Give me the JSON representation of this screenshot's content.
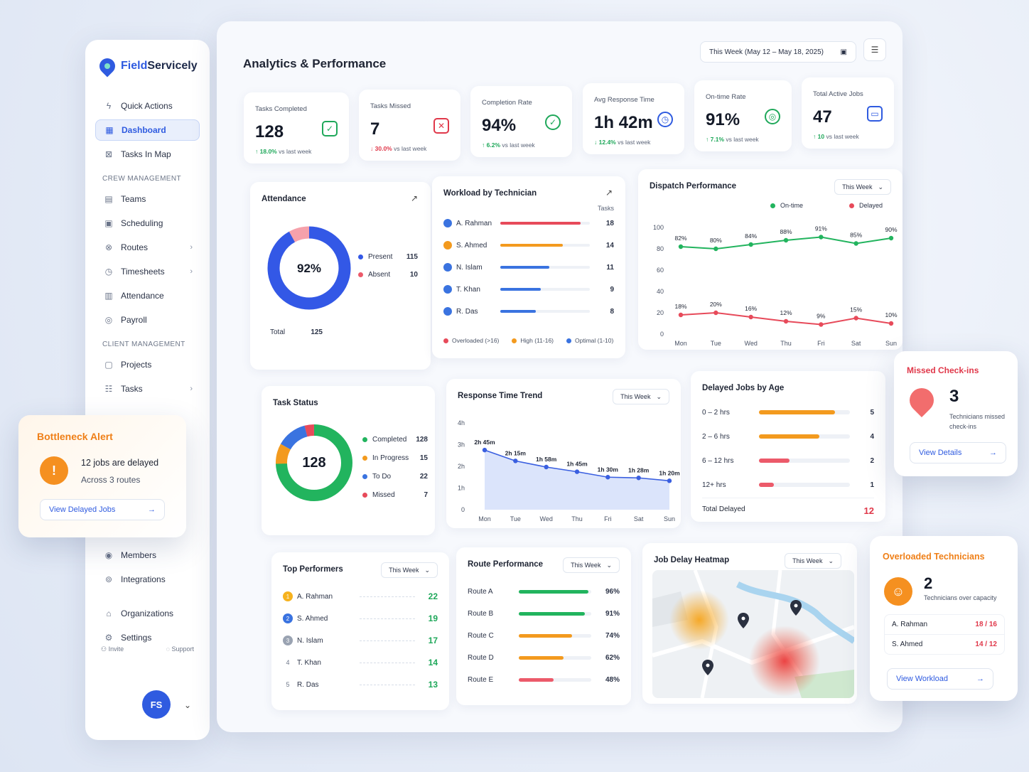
{
  "app": {
    "brand_a": "Field",
    "brand_b": "Servicely"
  },
  "sidebar": {
    "top": [
      {
        "label": "Quick Actions",
        "icon": "bolt-icon"
      },
      {
        "label": "Dashboard",
        "icon": "grid-icon"
      },
      {
        "label": "Tasks In Map",
        "icon": "map-icon"
      }
    ],
    "crew_title": "CREW MANAGEMENT",
    "crew": [
      {
        "label": "Teams"
      },
      {
        "label": "Scheduling"
      },
      {
        "label": "Routes"
      },
      {
        "label": "Timesheets"
      },
      {
        "label": "Attendance"
      },
      {
        "label": "Payroll"
      }
    ],
    "client_title": "CLIENT MANAGEMENT",
    "client": [
      {
        "label": "Projects"
      },
      {
        "label": "Tasks"
      }
    ],
    "bottom": [
      {
        "label": "Members"
      },
      {
        "label": "Integrations"
      },
      {
        "label": "Organizations"
      },
      {
        "label": "Settings"
      }
    ],
    "invite": "Invite",
    "support": "Support",
    "avatar": "FS"
  },
  "header": {
    "title": "Analytics & Performance",
    "date_range": "This Week (May 12 – May 18, 2025)"
  },
  "kpis": [
    {
      "label": "Tasks Completed",
      "value": "128",
      "delta": "18.0%",
      "suffix": "vs last week",
      "dir": "up"
    },
    {
      "label": "Tasks Missed",
      "value": "7",
      "delta": "30.0%",
      "suffix": "vs last week",
      "dir": "down"
    },
    {
      "label": "Completion Rate",
      "value": "94%",
      "delta": "6.2%",
      "suffix": "vs last week",
      "dir": "up"
    },
    {
      "label": "Avg Response Time",
      "value": "1h 42m",
      "delta": "12.4%",
      "suffix": "vs last week",
      "dir": "down"
    },
    {
      "label": "On-time Rate",
      "value": "91%",
      "delta": "7.1%",
      "suffix": "vs last week",
      "dir": "up"
    },
    {
      "label": "Total Active Jobs",
      "value": "47",
      "delta": "10",
      "suffix": "vs last week",
      "dir": "up"
    }
  ],
  "attendance": {
    "title": "Attendance",
    "center": "92%",
    "present_label": "Present",
    "present": "115",
    "absent_label": "Absent",
    "absent": "10",
    "total_label": "Total",
    "total": "125",
    "colors": {
      "present": "#3358e6",
      "absent": "#f6a1ab"
    }
  },
  "workload": {
    "title": "Workload by Technician",
    "col": "Tasks",
    "rows": [
      {
        "name": "A. Rahman",
        "value": 18,
        "color": "#e74a5a"
      },
      {
        "name": "S. Ahmed",
        "value": 14,
        "color": "#f39a1e"
      },
      {
        "name": "N. Islam",
        "value": 11,
        "color": "#3a73e0"
      },
      {
        "name": "T. Khan",
        "value": 9,
        "color": "#3a73e0"
      },
      {
        "name": "R. Das",
        "value": 8,
        "color": "#3a73e0"
      }
    ],
    "legend": [
      {
        "label": "Overloaded (>16)",
        "color": "#e74a5a"
      },
      {
        "label": "High (11-16)",
        "color": "#f39a1e"
      },
      {
        "label": "Optimal (1-10)",
        "color": "#3a73e0"
      }
    ]
  },
  "dispatch": {
    "title": "Dispatch Performance",
    "filter": "This Week",
    "on_time_label": "On-time",
    "delayed_label": "Delayed"
  },
  "task_status": {
    "title": "Task Status",
    "center": "128",
    "items": [
      {
        "label": "Completed",
        "value": "128",
        "color": "#22b45e"
      },
      {
        "label": "In Progress",
        "value": "15",
        "color": "#f39a1e"
      },
      {
        "label": "To Do",
        "value": "22",
        "color": "#3a73e0"
      },
      {
        "label": "Missed",
        "value": "7",
        "color": "#e74a5a"
      }
    ]
  },
  "response": {
    "title": "Response Time Trend",
    "filter": "This Week"
  },
  "delayed": {
    "title": "Delayed Jobs by Age",
    "rows": [
      {
        "label": "0 – 2 hrs",
        "value": 5,
        "color": "#f39a1e"
      },
      {
        "label": "2 – 6 hrs",
        "value": 4,
        "color": "#f39a1e"
      },
      {
        "label": "6 – 12 hrs",
        "value": 2,
        "color": "#ec5a6a"
      },
      {
        "label": "12+ hrs",
        "value": 1,
        "color": "#ec5a6a"
      }
    ],
    "total_label": "Total Delayed",
    "total": "12"
  },
  "performers": {
    "title": "Top Performers",
    "filter": "This Week",
    "rows": [
      {
        "rank": "1",
        "name": "A. Rahman",
        "value": "22"
      },
      {
        "rank": "2",
        "name": "S. Ahmed",
        "value": "19"
      },
      {
        "rank": "3",
        "name": "N. Islam",
        "value": "17"
      },
      {
        "rank": "4",
        "name": "T. Khan",
        "value": "14"
      },
      {
        "rank": "5",
        "name": "R. Das",
        "value": "13"
      }
    ]
  },
  "routes": {
    "title": "Route Performance",
    "filter": "This Week",
    "rows": [
      {
        "name": "Route A",
        "value": 96,
        "label": "96%",
        "color": "#22b45e"
      },
      {
        "name": "Route B",
        "value": 91,
        "label": "91%",
        "color": "#22b45e"
      },
      {
        "name": "Route C",
        "value": 74,
        "label": "74%",
        "color": "#f39a1e"
      },
      {
        "name": "Route D",
        "value": 62,
        "label": "62%",
        "color": "#f39a1e"
      },
      {
        "name": "Route E",
        "value": 48,
        "label": "48%",
        "color": "#ec5a6a"
      }
    ]
  },
  "heatmap": {
    "title": "Job Delay Heatmap",
    "filter": "This Week"
  },
  "bottleneck": {
    "title": "Bottleneck Alert",
    "line1": "12 jobs are delayed",
    "line2": "Across 3 routes",
    "button": "View Delayed Jobs"
  },
  "missed": {
    "title": "Missed Check-ins",
    "count": "3",
    "line": "Technicians missed check-ins",
    "button": "View Details"
  },
  "overloaded": {
    "title": "Overloaded Technicians",
    "count": "2",
    "line": "Technicians over capacity",
    "rows": [
      {
        "name": "A. Rahman",
        "value": "18 / 16"
      },
      {
        "name": "S. Ahmed",
        "value": "14 / 12"
      }
    ],
    "button": "View Workload"
  },
  "chart_data": [
    {
      "type": "line",
      "title": "Dispatch Performance",
      "categories": [
        "Mon",
        "Tue",
        "Wed",
        "Thu",
        "Fri",
        "Sat",
        "Sun"
      ],
      "ylim": [
        0,
        100
      ],
      "yticks": [
        0,
        20,
        40,
        60,
        80,
        100
      ],
      "series": [
        {
          "name": "On-time",
          "values": [
            82,
            80,
            84,
            88,
            91,
            85,
            90
          ],
          "labels": [
            "82%",
            "80%",
            "84%",
            "88%",
            "91%",
            "85%",
            "90%"
          ],
          "color": "#22b45e"
        },
        {
          "name": "Delayed",
          "values": [
            18,
            20,
            16,
            12,
            9,
            15,
            10
          ],
          "labels": [
            "18%",
            "20%",
            "16%",
            "12%",
            "9%",
            "15%",
            "10%"
          ],
          "color": "#e74a5a"
        }
      ]
    },
    {
      "type": "area",
      "title": "Response Time Trend",
      "categories": [
        "Mon",
        "Tue",
        "Wed",
        "Thu",
        "Fri",
        "Sat",
        "Sun"
      ],
      "ylim": [
        0,
        4
      ],
      "yticks": [
        "0",
        "1h",
        "2h",
        "3h",
        "4h"
      ],
      "values": [
        2.75,
        2.25,
        1.967,
        1.75,
        1.5,
        1.467,
        1.333
      ],
      "labels": [
        "2h 45m",
        "2h 15m",
        "1h 58m",
        "1h 45m",
        "1h 30m",
        "1h 28m",
        "1h 20m"
      ],
      "color": "#3a5fe0"
    },
    {
      "type": "pie",
      "title": "Attendance",
      "values": [
        115,
        10
      ],
      "categories": [
        "Present",
        "Absent"
      ]
    },
    {
      "type": "pie",
      "title": "Task Status",
      "values": [
        128,
        15,
        22,
        7
      ],
      "categories": [
        "Completed",
        "In Progress",
        "To Do",
        "Missed"
      ]
    }
  ]
}
